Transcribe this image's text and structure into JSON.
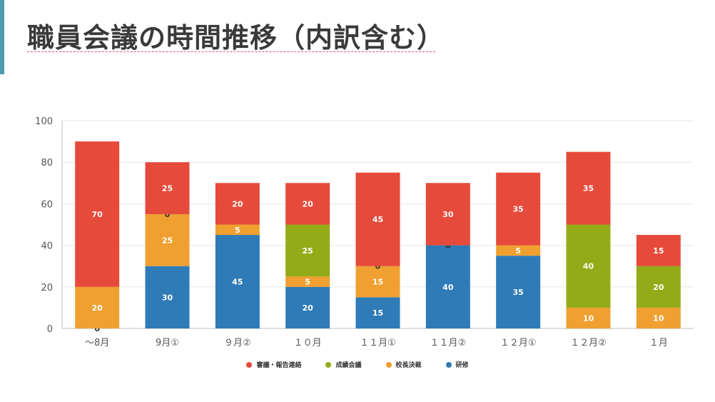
{
  "page": {
    "title": "職員会議の時間推移（内訳含む）"
  },
  "chart_data": {
    "type": "bar",
    "stacked": true,
    "title": "",
    "xlabel": "",
    "ylabel": "",
    "ylim": [
      0,
      100
    ],
    "yticks": [
      0,
      20,
      40,
      60,
      80,
      100
    ],
    "grid": true,
    "legend_position": "bottom",
    "categories": [
      "〜8月",
      "9月①",
      "９月②",
      "１０月",
      "１１月①",
      "１１月②",
      "１２月①",
      "１２月②",
      "１月"
    ],
    "series": [
      {
        "name": "研修",
        "color": "#2e7bb8",
        "values": [
          0,
          30,
          45,
          20,
          15,
          40,
          35,
          0,
          0
        ],
        "labels": [
          "0",
          "30",
          "45",
          "20",
          "15",
          "40",
          "35",
          null,
          null
        ]
      },
      {
        "name": "校長決裁",
        "color": "#f0a030",
        "values": [
          20,
          25,
          5,
          5,
          15,
          0,
          5,
          10,
          10
        ],
        "labels": [
          "20",
          "25",
          "5",
          "5",
          "15",
          null,
          "5",
          "10",
          "10"
        ]
      },
      {
        "name": "成績会議",
        "color": "#94ab18",
        "values": [
          0,
          0,
          0,
          25,
          0,
          0,
          0,
          40,
          20
        ],
        "labels": [
          null,
          "0",
          null,
          "25",
          "0",
          "0",
          null,
          "40",
          "20"
        ]
      },
      {
        "name": "審議・報告連絡",
        "color": "#e64a3b",
        "values": [
          70,
          25,
          20,
          20,
          45,
          30,
          35,
          35,
          15
        ],
        "labels": [
          "70",
          "25",
          "20",
          "20",
          "45",
          "30",
          "35",
          "35",
          "15"
        ]
      }
    ],
    "legend_order": [
      "審議・報告連絡",
      "成績会議",
      "校長決裁",
      "研修"
    ]
  }
}
